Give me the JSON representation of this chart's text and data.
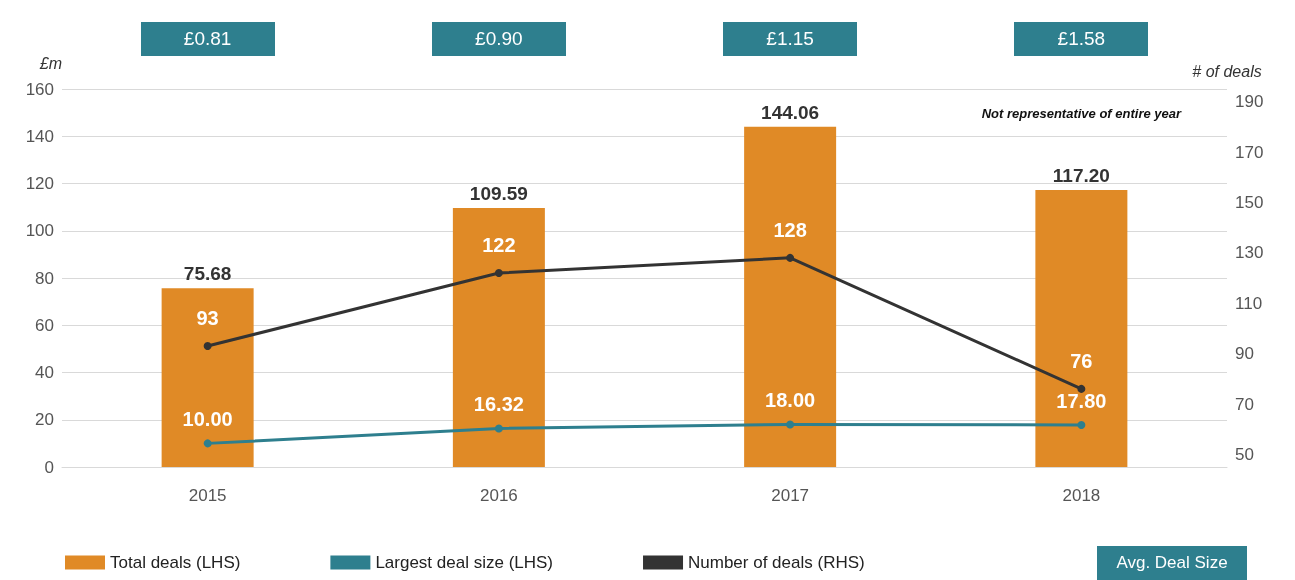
{
  "chart_data": {
    "type": "bar",
    "ylabel": "£m",
    "y2label": "# of deals",
    "categories": [
      "2015",
      "2016",
      "2017",
      "2018"
    ],
    "series": [
      {
        "name": "Total deals (LHS)",
        "color": "#e08a26",
        "values": [
          75.68,
          109.59,
          144.06,
          117.2
        ],
        "value_labels": [
          "75.68",
          "109.59",
          "144.06",
          "117.20"
        ]
      },
      {
        "name": "Largest deal size (LHS)",
        "type": "line",
        "color": "#2e7f8e",
        "values": [
          10,
          16.32,
          18,
          17.8
        ],
        "value_labels": [
          "10.00",
          "16.32",
          "18.00",
          "17.80"
        ]
      },
      {
        "name": "Number of deals (RHS)",
        "type": "line",
        "axis": "y2",
        "color": "#333333",
        "values": [
          93,
          122,
          128,
          76
        ],
        "value_labels": [
          "93",
          "122",
          "128",
          "76"
        ]
      }
    ],
    "ylim": [
      0,
      160
    ],
    "yticks": [
      0,
      20,
      40,
      60,
      80,
      100,
      120,
      140,
      160
    ],
    "y2lim": [
      45,
      195
    ],
    "y2ticks": [
      50,
      70,
      90,
      110,
      130,
      150,
      170,
      190
    ],
    "grid": "y",
    "legend": "bottom",
    "marker": "circle",
    "line_style": "solid",
    "annotations": [
      "£0.81",
      "£0.90",
      "£1.15",
      "£1.58",
      "Avg. Deal Size",
      "Not representative of entire year"
    ]
  }
}
